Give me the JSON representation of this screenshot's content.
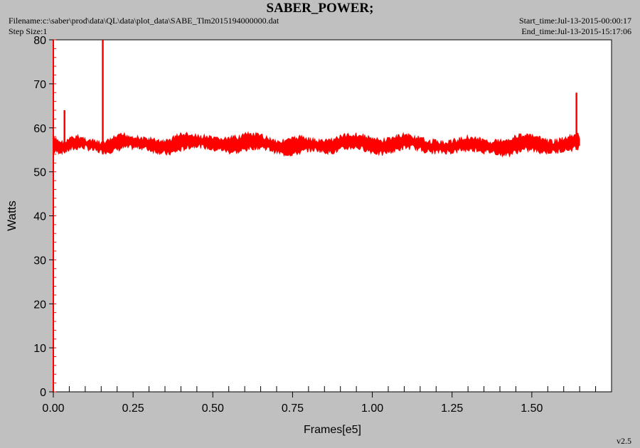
{
  "header": {
    "title": "SABER_POWER;",
    "filename": "Filename:c:\\saber\\prod\\data\\QL\\data\\plot_data\\SABE_Tlm2015194000000.dat",
    "step_size": "Step Size:1",
    "start_time": "Start_time:Jul-13-2015-00:00:17",
    "end_time": "End_time:Jul-13-2015-15:17:06"
  },
  "footer": {
    "version": "v2.5"
  },
  "chart_data": {
    "type": "line",
    "title": "SABER_POWER;",
    "xlabel": "Frames[e5]",
    "ylabel": "Watts",
    "xlim": [
      0,
      1.75
    ],
    "ylim": [
      0,
      80
    ],
    "x_ticks": [
      "0.00",
      "0.25",
      "0.50",
      "0.75",
      "1.00",
      "1.25",
      "1.50"
    ],
    "x_tick_values": [
      0,
      0.25,
      0.5,
      0.75,
      1.0,
      1.25,
      1.5
    ],
    "y_ticks": [
      "0",
      "10",
      "20",
      "30",
      "40",
      "50",
      "60",
      "70",
      "80"
    ],
    "y_tick_values": [
      0,
      10,
      20,
      30,
      40,
      50,
      60,
      70,
      80
    ],
    "grid": false,
    "line_color": "#ff0000",
    "series": [
      {
        "x": [
          0.0,
          0.02,
          0.035,
          0.05,
          0.08,
          0.1,
          0.12,
          0.15,
          0.17,
          0.2,
          0.22,
          0.25,
          0.28,
          0.3,
          0.33,
          0.36,
          0.38,
          0.4,
          0.42,
          0.45,
          0.48,
          0.5,
          0.53,
          0.55,
          0.58,
          0.6,
          0.63,
          0.66,
          0.68,
          0.7,
          0.72,
          0.75,
          0.78,
          0.8,
          0.83,
          0.85,
          0.88,
          0.9,
          0.93,
          0.95,
          0.98,
          1.0,
          1.03,
          1.05,
          1.08,
          1.1,
          1.13,
          1.15,
          1.18,
          1.2,
          1.23,
          1.25,
          1.28,
          1.3,
          1.33,
          1.35,
          1.38,
          1.4,
          1.43,
          1.45,
          1.48,
          1.5,
          1.53,
          1.55,
          1.58,
          1.6,
          1.62,
          1.64,
          1.65
        ],
        "y_min": [
          54,
          54,
          54,
          54.5,
          55,
          55,
          54.5,
          54,
          54,
          54.5,
          55,
          55,
          55,
          54.5,
          54,
          53.5,
          54,
          54.5,
          55,
          55.5,
          55,
          54.5,
          54.5,
          54,
          54,
          54.5,
          55,
          55,
          54.5,
          54,
          53.5,
          53.5,
          54,
          54.5,
          54.5,
          54,
          54,
          54.5,
          55,
          55,
          54.5,
          54,
          53.5,
          54,
          54.5,
          55,
          55,
          54.5,
          54,
          54,
          54,
          54,
          54.5,
          54.5,
          54.5,
          54,
          54,
          53.5,
          53.5,
          54,
          54.5,
          54.5,
          54,
          54,
          54,
          54.5,
          54.5,
          55,
          55
        ],
        "y_max": [
          58,
          57.5,
          57,
          58,
          58.5,
          58,
          57.5,
          57,
          57.5,
          58.5,
          59,
          58.5,
          58,
          58,
          57.5,
          57.5,
          58.5,
          59,
          59,
          58.5,
          58.5,
          58,
          58,
          58,
          58.5,
          59,
          59,
          58.5,
          58,
          57.5,
          57.5,
          58,
          58.5,
          58,
          57.5,
          57.5,
          58,
          58.5,
          59,
          59,
          58.5,
          58,
          57.5,
          58,
          58.5,
          59,
          58.5,
          58,
          57.5,
          57.5,
          57,
          57.5,
          58,
          58.5,
          58,
          57.5,
          57.5,
          57.5,
          58,
          58.5,
          59,
          58.5,
          58,
          57.5,
          57.5,
          58,
          58.5,
          59,
          58.5
        ],
        "spikes": [
          {
            "x": 0.035,
            "y": 64
          },
          {
            "x": 0.155,
            "y": 80
          },
          {
            "x": 1.64,
            "y": 68
          }
        ]
      }
    ]
  }
}
